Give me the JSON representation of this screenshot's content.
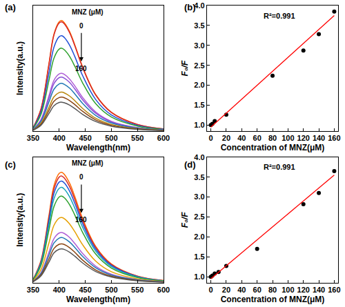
{
  "chart_data": [
    {
      "type": "line",
      "title": "(a)",
      "x_label": "Wavelength(nm)",
      "y_label": "Intensity(a.u.)",
      "annotations": [
        "MNZ (μM)",
        "0",
        "160"
      ],
      "x": [
        350,
        365,
        380,
        390,
        400,
        405,
        410,
        420,
        430,
        445,
        470,
        500,
        550,
        600
      ],
      "xlim": [
        350,
        600
      ],
      "xticks": [
        350,
        400,
        450,
        500,
        550,
        600
      ],
      "ylim": [
        0,
        100
      ],
      "tick_labels": "x",
      "grid": false,
      "series": [
        {
          "color": "#ff6a00",
          "values": [
            2.6,
            17.6,
            52.8,
            77.4,
            87.1,
            88,
            86.2,
            79.2,
            68.6,
            51.0,
            29.0,
            15.0,
            5.3,
            1.8
          ]
        },
        {
          "color": "#d62728",
          "values": [
            2.6,
            17.4,
            52.2,
            76.6,
            86.1,
            87,
            85.3,
            78.3,
            67.9,
            50.5,
            28.7,
            14.8,
            5.2,
            1.7
          ]
        },
        {
          "color": "#1f4fd6",
          "values": [
            2.3,
            15.2,
            45.6,
            66.9,
            75.2,
            76,
            74.5,
            68.4,
            59.3,
            44.1,
            25.1,
            12.9,
            4.6,
            1.5
          ]
        },
        {
          "color": "#2ca02c",
          "values": [
            2.0,
            13.2,
            39.6,
            58.1,
            65.3,
            66,
            64.7,
            59.4,
            51.5,
            38.3,
            21.8,
            11.2,
            4.0,
            1.3
          ]
        },
        {
          "color": "#b05fd6",
          "values": [
            1.4,
            9.2,
            27.6,
            40.5,
            45.5,
            46,
            45.1,
            41.4,
            35.9,
            26.7,
            15.2,
            7.8,
            2.8,
            0.9
          ]
        },
        {
          "color": "#8a4fd6",
          "values": [
            1.3,
            8.6,
            25.8,
            37.8,
            42.6,
            43,
            42.1,
            38.7,
            33.5,
            24.9,
            14.2,
            7.3,
            2.6,
            0.9
          ]
        },
        {
          "color": "#1f77b4",
          "values": [
            1.1,
            7.6,
            22.8,
            33.4,
            37.6,
            38,
            37.2,
            34.2,
            29.6,
            22.0,
            12.5,
            6.5,
            2.3,
            0.8
          ]
        },
        {
          "color": "#b8860b",
          "values": [
            0.9,
            6.2,
            18.6,
            27.3,
            30.7,
            31,
            30.4,
            27.9,
            24.2,
            18.0,
            10.2,
            5.3,
            1.9,
            0.6
          ]
        },
        {
          "color": "#8b4513",
          "values": [
            0.8,
            5.4,
            16.2,
            23.8,
            26.7,
            27,
            26.5,
            24.3,
            21.1,
            15.7,
            8.9,
            4.6,
            1.6,
            0.5
          ]
        },
        {
          "color": "#555555",
          "values": [
            0.7,
            4.6,
            13.8,
            20.2,
            22.8,
            23,
            22.5,
            20.7,
            17.9,
            13.3,
            7.6,
            3.9,
            1.4,
            0.5
          ]
        }
      ]
    },
    {
      "type": "scatter",
      "title": "(b)",
      "x_label": "Concentration of MNZ(μM)",
      "y_label": "F₀/F",
      "annotations": [
        "R²=0.991"
      ],
      "xlim": [
        -5,
        165
      ],
      "xticks": [
        0,
        20,
        40,
        60,
        80,
        100,
        120,
        140,
        160
      ],
      "ylim": [
        0.85,
        4.0
      ],
      "yticks": [
        {
          "value": 1,
          "label": "1.0"
        },
        1.5,
        {
          "value": 2,
          "label": "2.0"
        },
        2.5,
        {
          "value": 3,
          "label": "3.0"
        },
        3.5,
        {
          "value": 4,
          "label": "4.0"
        }
      ],
      "grid": false,
      "series": [
        {
          "type": "scatter",
          "marker": "circle",
          "color": "#000000",
          "x": [
            0,
            2,
            5,
            20,
            80,
            120,
            140,
            160
          ],
          "values": [
            1.0,
            1.03,
            1.1,
            1.26,
            2.24,
            2.87,
            3.28,
            3.85
          ]
        },
        {
          "type": "line",
          "line_style": "solid",
          "color": "#ff0000",
          "x": [
            0,
            160
          ],
          "values": [
            0.95,
            3.75
          ]
        }
      ]
    },
    {
      "type": "line",
      "title": "(c)",
      "x_label": "Wavelength(nm)",
      "y_label": "Intensity(a.u.)",
      "annotations": [
        "MNZ (μM)",
        "0",
        "160"
      ],
      "x": [
        350,
        365,
        380,
        390,
        400,
        405,
        410,
        420,
        430,
        445,
        470,
        500,
        550,
        600
      ],
      "xlim": [
        350,
        600
      ],
      "xticks": [
        350,
        400,
        450,
        500,
        550,
        600
      ],
      "ylim": [
        0,
        100
      ],
      "tick_labels": "x",
      "grid": false,
      "series": [
        {
          "color": "#ff6a00",
          "values": [
            2.6,
            17.6,
            52.8,
            77.4,
            87.1,
            88,
            86.2,
            79.2,
            68.6,
            51.0,
            29.0,
            15.0,
            5.3,
            1.8
          ]
        },
        {
          "color": "#d62728",
          "values": [
            2.6,
            17.0,
            51.0,
            74.8,
            84.2,
            85,
            83.3,
            76.5,
            66.3,
            49.3,
            28.1,
            14.5,
            5.1,
            1.7
          ]
        },
        {
          "color": "#1f4fd6",
          "values": [
            2.4,
            16.2,
            48.6,
            71.3,
            80.2,
            81,
            79.4,
            72.9,
            63.2,
            47.0,
            26.7,
            13.8,
            4.9,
            1.6
          ]
        },
        {
          "color": "#17a2b8",
          "values": [
            2.3,
            15.2,
            45.6,
            66.9,
            75.2,
            76,
            74.5,
            68.4,
            59.3,
            44.1,
            25.1,
            12.9,
            4.6,
            1.5
          ]
        },
        {
          "color": "#2ca02c",
          "values": [
            2.1,
            13.8,
            41.4,
            60.7,
            68.3,
            69,
            67.6,
            62.1,
            53.8,
            40.0,
            22.8,
            11.7,
            4.1,
            1.4
          ]
        },
        {
          "color": "#e6a000",
          "values": [
            1.6,
            10.4,
            31.2,
            45.8,
            51.5,
            52,
            51.0,
            46.8,
            40.6,
            30.2,
            17.2,
            8.8,
            3.1,
            1.0
          ]
        },
        {
          "color": "#b05fd6",
          "values": [
            1.2,
            8.0,
            24.0,
            35.2,
            39.6,
            40,
            39.2,
            36.0,
            31.2,
            23.2,
            13.2,
            6.8,
            2.4,
            0.8
          ]
        },
        {
          "color": "#1f77b4",
          "values": [
            1.1,
            7.2,
            21.6,
            31.7,
            35.6,
            36,
            35.3,
            32.4,
            28.1,
            20.9,
            11.9,
            6.1,
            2.2,
            0.7
          ]
        },
        {
          "color": "#8b4513",
          "values": [
            0.9,
            6.2,
            18.6,
            27.3,
            30.7,
            31,
            30.4,
            27.9,
            24.2,
            18.0,
            10.2,
            5.3,
            1.9,
            0.6
          ]
        },
        {
          "color": "#555555",
          "values": [
            0.8,
            5.4,
            16.2,
            23.8,
            26.7,
            27,
            26.5,
            24.3,
            21.1,
            15.7,
            8.9,
            4.6,
            1.6,
            0.5
          ]
        }
      ]
    },
    {
      "type": "scatter",
      "title": "(d)",
      "x_label": "Concentration of MNZ(μM)",
      "y_label": "F₀/F",
      "annotations": [
        "R²=0.991"
      ],
      "xlim": [
        -5,
        165
      ],
      "xticks": [
        0,
        20,
        40,
        60,
        80,
        100,
        120,
        140,
        160
      ],
      "ylim": [
        0.85,
        4.0
      ],
      "yticks": [
        {
          "value": 1,
          "label": "1.0"
        },
        1.5,
        {
          "value": 2,
          "label": "2.0"
        },
        2.5,
        {
          "value": 3,
          "label": "3.0"
        },
        3.5,
        {
          "value": 4,
          "label": "4.0"
        }
      ],
      "grid": false,
      "series": [
        {
          "type": "scatter",
          "marker": "circle",
          "color": "#000000",
          "x": [
            0,
            2,
            5,
            10,
            20,
            60,
            120,
            140,
            160
          ],
          "values": [
            1.0,
            1.03,
            1.08,
            1.12,
            1.27,
            1.7,
            2.82,
            3.1,
            3.65
          ]
        },
        {
          "type": "line",
          "line_style": "solid",
          "color": "#ff0000",
          "x": [
            0,
            160
          ],
          "values": [
            0.95,
            3.55
          ]
        }
      ]
    }
  ]
}
